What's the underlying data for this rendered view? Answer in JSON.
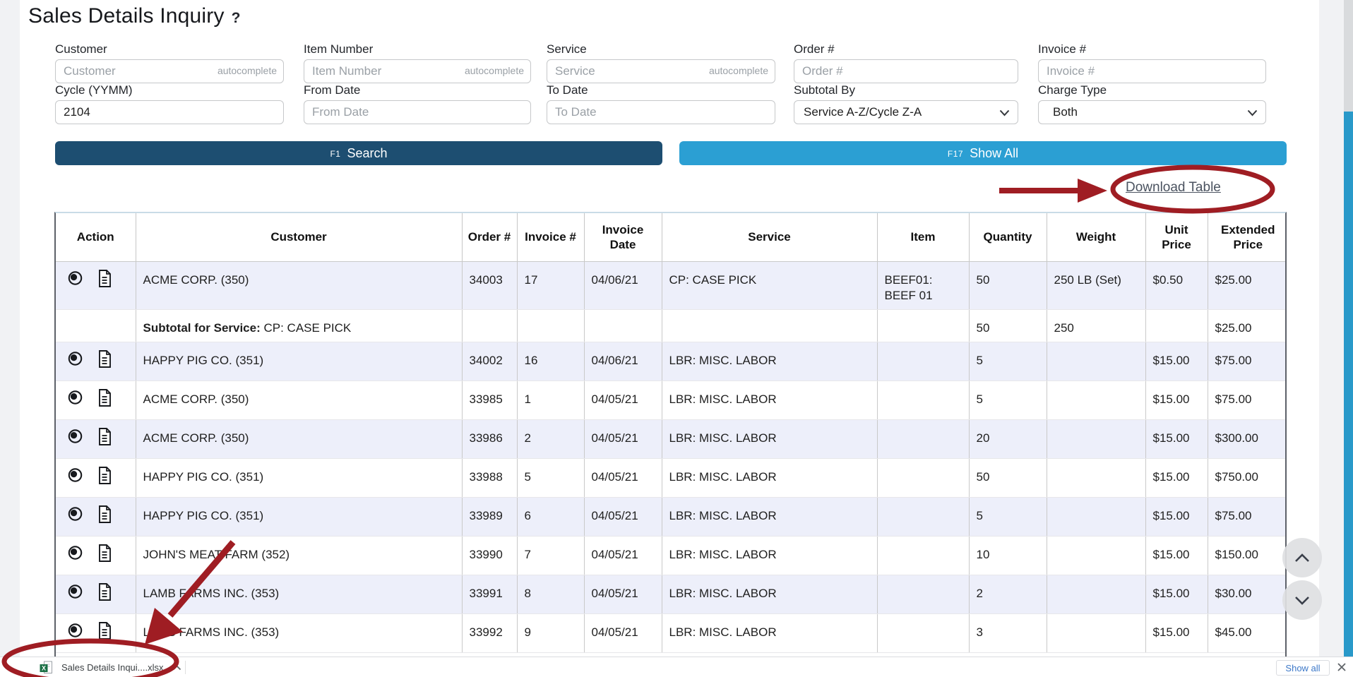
{
  "page": {
    "title": "Sales Details Inquiry",
    "help_glyph": "?"
  },
  "filters": {
    "row1": [
      {
        "label": "Customer",
        "placeholder": "Customer",
        "hint": "autocomplete",
        "value": ""
      },
      {
        "label": "Item Number",
        "placeholder": "Item Number",
        "hint": "autocomplete",
        "value": ""
      },
      {
        "label": "Service",
        "placeholder": "Service",
        "hint": "autocomplete",
        "value": ""
      },
      {
        "label": "Order #",
        "placeholder": "Order #",
        "hint": "",
        "value": ""
      },
      {
        "label": "Invoice #",
        "placeholder": "Invoice #",
        "hint": "",
        "value": ""
      }
    ],
    "row2": [
      {
        "label": "Cycle (YYMM)",
        "placeholder": "",
        "value": "2104",
        "type": "input"
      },
      {
        "label": "From Date",
        "placeholder": "From Date",
        "value": "",
        "type": "input"
      },
      {
        "label": "To Date",
        "placeholder": "To Date",
        "value": "",
        "type": "input"
      },
      {
        "label": "Subtotal By",
        "value": "Service A-Z/Cycle Z-A",
        "type": "select"
      },
      {
        "label": "Charge Type",
        "value": "Both",
        "type": "select"
      }
    ]
  },
  "buttons": {
    "search_key": "F1",
    "search_label": "Search",
    "showall_key": "F17",
    "showall_label": "Show All"
  },
  "download_link": "Download Table",
  "table": {
    "headers": [
      "Action",
      "Customer",
      "Order #",
      "Invoice #",
      "Invoice Date",
      "Service",
      "Item",
      "Quantity",
      "Weight",
      "Unit Price",
      "Extended Price"
    ],
    "rows": [
      {
        "type": "data",
        "shade": true,
        "customer": "ACME CORP. (350)",
        "order": "34003",
        "invoice": "17",
        "date": "04/06/21",
        "service": "CP: CASE PICK",
        "item": "BEEF01: BEEF 01",
        "quantity": "50",
        "weight": "250 LB (Set)",
        "unit_price": "$0.50",
        "extended_price": "$25.00"
      },
      {
        "type": "subtotal",
        "shade": false,
        "label": "Subtotal for Service:",
        "service": "CP: CASE PICK",
        "quantity": "50",
        "weight": "250",
        "extended_price": "$25.00"
      },
      {
        "type": "data",
        "shade": true,
        "customer": "HAPPY PIG CO. (351)",
        "order": "34002",
        "invoice": "16",
        "date": "04/06/21",
        "service": "LBR: MISC. LABOR",
        "item": "",
        "quantity": "5",
        "weight": "",
        "unit_price": "$15.00",
        "extended_price": "$75.00"
      },
      {
        "type": "data",
        "shade": false,
        "customer": "ACME CORP. (350)",
        "order": "33985",
        "invoice": "1",
        "date": "04/05/21",
        "service": "LBR: MISC. LABOR",
        "item": "",
        "quantity": "5",
        "weight": "",
        "unit_price": "$15.00",
        "extended_price": "$75.00"
      },
      {
        "type": "data",
        "shade": true,
        "customer": "ACME CORP. (350)",
        "order": "33986",
        "invoice": "2",
        "date": "04/05/21",
        "service": "LBR: MISC. LABOR",
        "item": "",
        "quantity": "20",
        "weight": "",
        "unit_price": "$15.00",
        "extended_price": "$300.00"
      },
      {
        "type": "data",
        "shade": false,
        "customer": "HAPPY PIG CO. (351)",
        "order": "33988",
        "invoice": "5",
        "date": "04/05/21",
        "service": "LBR: MISC. LABOR",
        "item": "",
        "quantity": "50",
        "weight": "",
        "unit_price": "$15.00",
        "extended_price": "$750.00"
      },
      {
        "type": "data",
        "shade": true,
        "customer": "HAPPY PIG CO. (351)",
        "order": "33989",
        "invoice": "6",
        "date": "04/05/21",
        "service": "LBR: MISC. LABOR",
        "item": "",
        "quantity": "5",
        "weight": "",
        "unit_price": "$15.00",
        "extended_price": "$75.00"
      },
      {
        "type": "data",
        "shade": false,
        "customer": "JOHN'S MEAT FARM (352)",
        "order": "33990",
        "invoice": "7",
        "date": "04/05/21",
        "service": "LBR: MISC. LABOR",
        "item": "",
        "quantity": "10",
        "weight": "",
        "unit_price": "$15.00",
        "extended_price": "$150.00"
      },
      {
        "type": "data",
        "shade": true,
        "customer": "LAMB FARMS INC. (353)",
        "order": "33991",
        "invoice": "8",
        "date": "04/05/21",
        "service": "LBR: MISC. LABOR",
        "item": "",
        "quantity": "2",
        "weight": "",
        "unit_price": "$15.00",
        "extended_price": "$30.00"
      },
      {
        "type": "data",
        "shade": false,
        "customer": "LAMB FARMS INC. (353)",
        "order": "33992",
        "invoice": "9",
        "date": "04/05/21",
        "service": "LBR: MISC. LABOR",
        "item": "",
        "quantity": "3",
        "weight": "",
        "unit_price": "$15.00",
        "extended_price": "$45.00"
      }
    ]
  },
  "download_bar": {
    "filename": "Sales Details Inqui....xlsx",
    "show_all_label": "Show all"
  },
  "icons": {
    "eye": "eye-icon",
    "document": "document-icon",
    "excel_file": "excel-file-icon",
    "chevron_up": "chevron-up-icon",
    "chevron_down": "chevron-down-icon",
    "close": "close-icon"
  },
  "colors": {
    "search_button": "#1d4e71",
    "showall_button": "#2b9fd3",
    "row_shade": "#edeffa",
    "annotation_red": "#9f1d23",
    "link": "#4b5360",
    "scroll_thumb": "#2999c9"
  }
}
